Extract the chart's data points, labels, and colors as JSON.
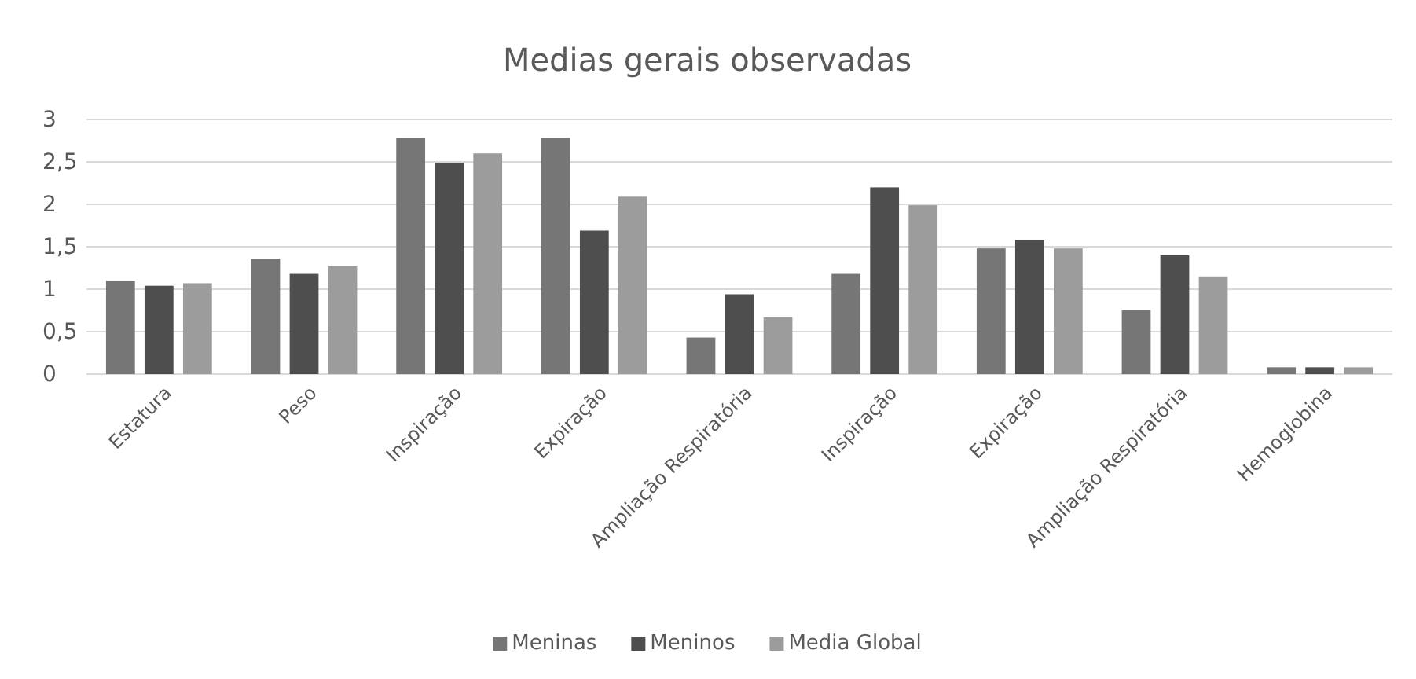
{
  "chart_data": {
    "type": "bar",
    "title": "Medias gerais observadas",
    "categories": [
      "Estatura",
      "Peso",
      "Inspiração",
      "Expiração",
      "Ampliação Respiratória",
      "Inspiração",
      "Expiração",
      "Ampliação Respiratória",
      "Hemoglobina"
    ],
    "series": [
      {
        "name": "Meninas",
        "color": "#767676",
        "values": [
          1.1,
          1.36,
          2.78,
          2.78,
          0.43,
          1.18,
          1.48,
          0.75,
          0.08
        ]
      },
      {
        "name": "Meninos",
        "color": "#4e4e4e",
        "values": [
          1.04,
          1.18,
          2.49,
          1.69,
          0.94,
          2.2,
          1.58,
          1.4,
          0.08
        ]
      },
      {
        "name": "Media Global",
        "color": "#9c9c9c",
        "values": [
          1.07,
          1.27,
          2.6,
          2.09,
          0.67,
          1.99,
          1.48,
          1.15,
          0.08
        ]
      }
    ],
    "ylim": [
      0,
      3
    ],
    "yticks": [
      0,
      {
        "value": 0.5,
        "label": "0,5"
      },
      1,
      {
        "value": 1.5,
        "label": "1,5"
      },
      2,
      {
        "value": 2.5,
        "label": "2,5"
      },
      3
    ],
    "grid": "y",
    "legend": "bottom"
  }
}
